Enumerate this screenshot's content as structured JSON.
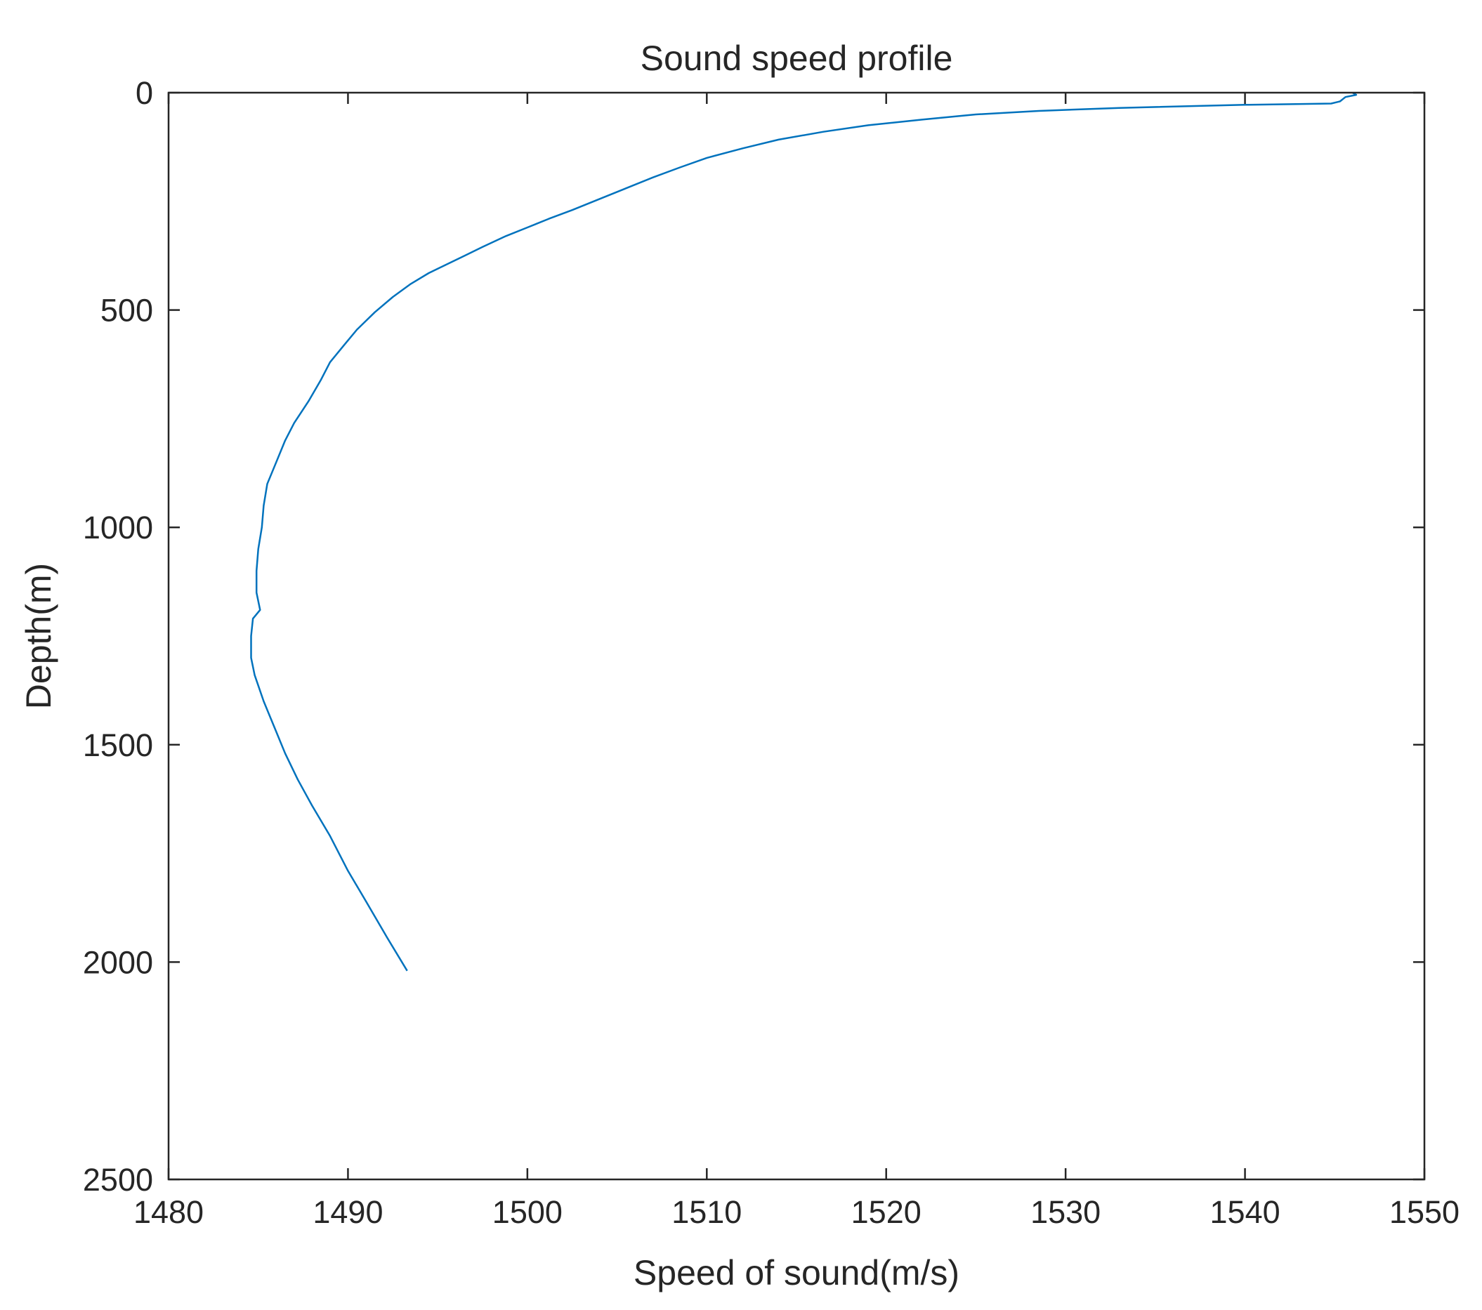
{
  "chart_data": {
    "type": "line",
    "title": "Sound speed profile",
    "xlabel": "Speed of sound(m/s)",
    "ylabel": "Depth(m)",
    "xlim": [
      1480,
      1550
    ],
    "ylim": [
      0,
      2500
    ],
    "y_reversed": true,
    "x_ticks": [
      "1480",
      "1490",
      "1500",
      "1510",
      "1520",
      "1530",
      "1540",
      "1550"
    ],
    "y_ticks": [
      "0",
      "500",
      "1000",
      "1500",
      "2000",
      "2500"
    ],
    "grid": false,
    "legend": "none",
    "series": [
      {
        "color": "#0072BD",
        "points": [
          [
            1546.0,
            0
          ],
          [
            1546.2,
            5
          ],
          [
            1545.6,
            10
          ],
          [
            1545.3,
            20
          ],
          [
            1544.8,
            25
          ],
          [
            1540.0,
            28
          ],
          [
            1533.0,
            35
          ],
          [
            1528.5,
            42
          ],
          [
            1525.0,
            50
          ],
          [
            1522.0,
            62
          ],
          [
            1519.0,
            75
          ],
          [
            1516.5,
            90
          ],
          [
            1514.0,
            108
          ],
          [
            1512.0,
            128
          ],
          [
            1510.0,
            150
          ],
          [
            1508.5,
            172
          ],
          [
            1507.0,
            195
          ],
          [
            1505.5,
            220
          ],
          [
            1504.0,
            245
          ],
          [
            1502.5,
            270
          ],
          [
            1501.2,
            290
          ],
          [
            1500.0,
            310
          ],
          [
            1498.8,
            330
          ],
          [
            1497.5,
            355
          ],
          [
            1496.5,
            375
          ],
          [
            1495.5,
            395
          ],
          [
            1494.5,
            415
          ],
          [
            1493.5,
            440
          ],
          [
            1492.5,
            470
          ],
          [
            1491.5,
            505
          ],
          [
            1490.5,
            545
          ],
          [
            1489.8,
            580
          ],
          [
            1489.0,
            620
          ],
          [
            1488.5,
            660
          ],
          [
            1487.8,
            710
          ],
          [
            1487.0,
            760
          ],
          [
            1486.5,
            800
          ],
          [
            1486.0,
            850
          ],
          [
            1485.5,
            900
          ],
          [
            1485.3,
            950
          ],
          [
            1485.2,
            1000
          ],
          [
            1485.0,
            1050
          ],
          [
            1484.9,
            1100
          ],
          [
            1484.9,
            1150
          ],
          [
            1485.1,
            1190
          ],
          [
            1484.7,
            1210
          ],
          [
            1484.6,
            1250
          ],
          [
            1484.6,
            1300
          ],
          [
            1484.8,
            1340
          ],
          [
            1485.3,
            1400
          ],
          [
            1485.9,
            1460
          ],
          [
            1486.5,
            1520
          ],
          [
            1487.2,
            1580
          ],
          [
            1488.0,
            1640
          ],
          [
            1489.0,
            1710
          ],
          [
            1490.0,
            1790
          ],
          [
            1491.0,
            1860
          ],
          [
            1492.2,
            1945
          ],
          [
            1493.3,
            2020
          ]
        ]
      }
    ]
  }
}
